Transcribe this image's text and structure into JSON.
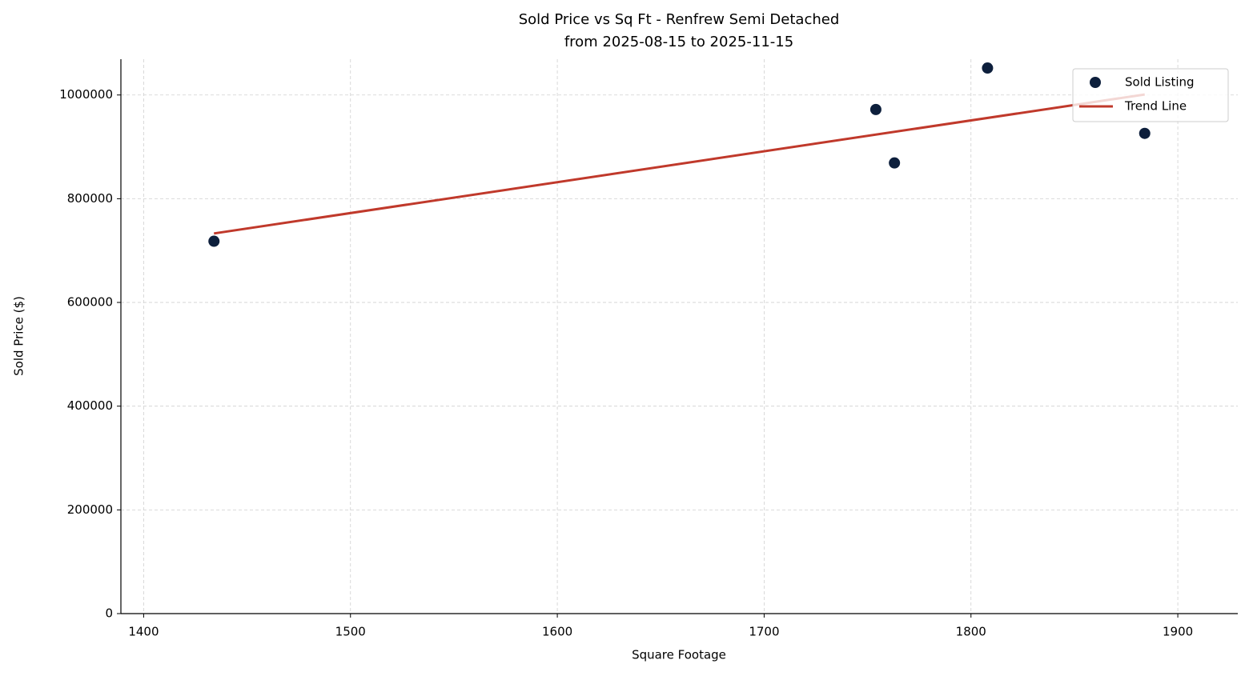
{
  "chart_data": {
    "type": "scatter",
    "title": "Sold Price vs Sq Ft - Renfrew Semi Detached",
    "subtitle": "from 2025-08-15 to 2025-11-15",
    "x_label": "Square Footage",
    "y_label": "Sold Price ($)",
    "series": [
      {
        "name": "Sold Listing",
        "type": "scatter",
        "color": "#0d1f3c",
        "x": [
          1434,
          1754,
          1763,
          1808,
          1884
        ],
        "values": [
          718000,
          972000,
          869000,
          1052000,
          926000
        ]
      },
      {
        "name": "Trend Line",
        "type": "line",
        "color": "#c0392b",
        "x": [
          1434,
          1884
        ],
        "values": [
          733000,
          1001000
        ]
      }
    ],
    "xlim": [
      1389,
      1929
    ],
    "xticks": [
      1400,
      1500,
      1600,
      1700,
      1800,
      1900
    ],
    "ylim": [
      0,
      1069000
    ],
    "yticks": [
      0,
      200000,
      400000,
      600000,
      800000,
      1000000
    ],
    "grid": true,
    "legend": "upper right"
  }
}
